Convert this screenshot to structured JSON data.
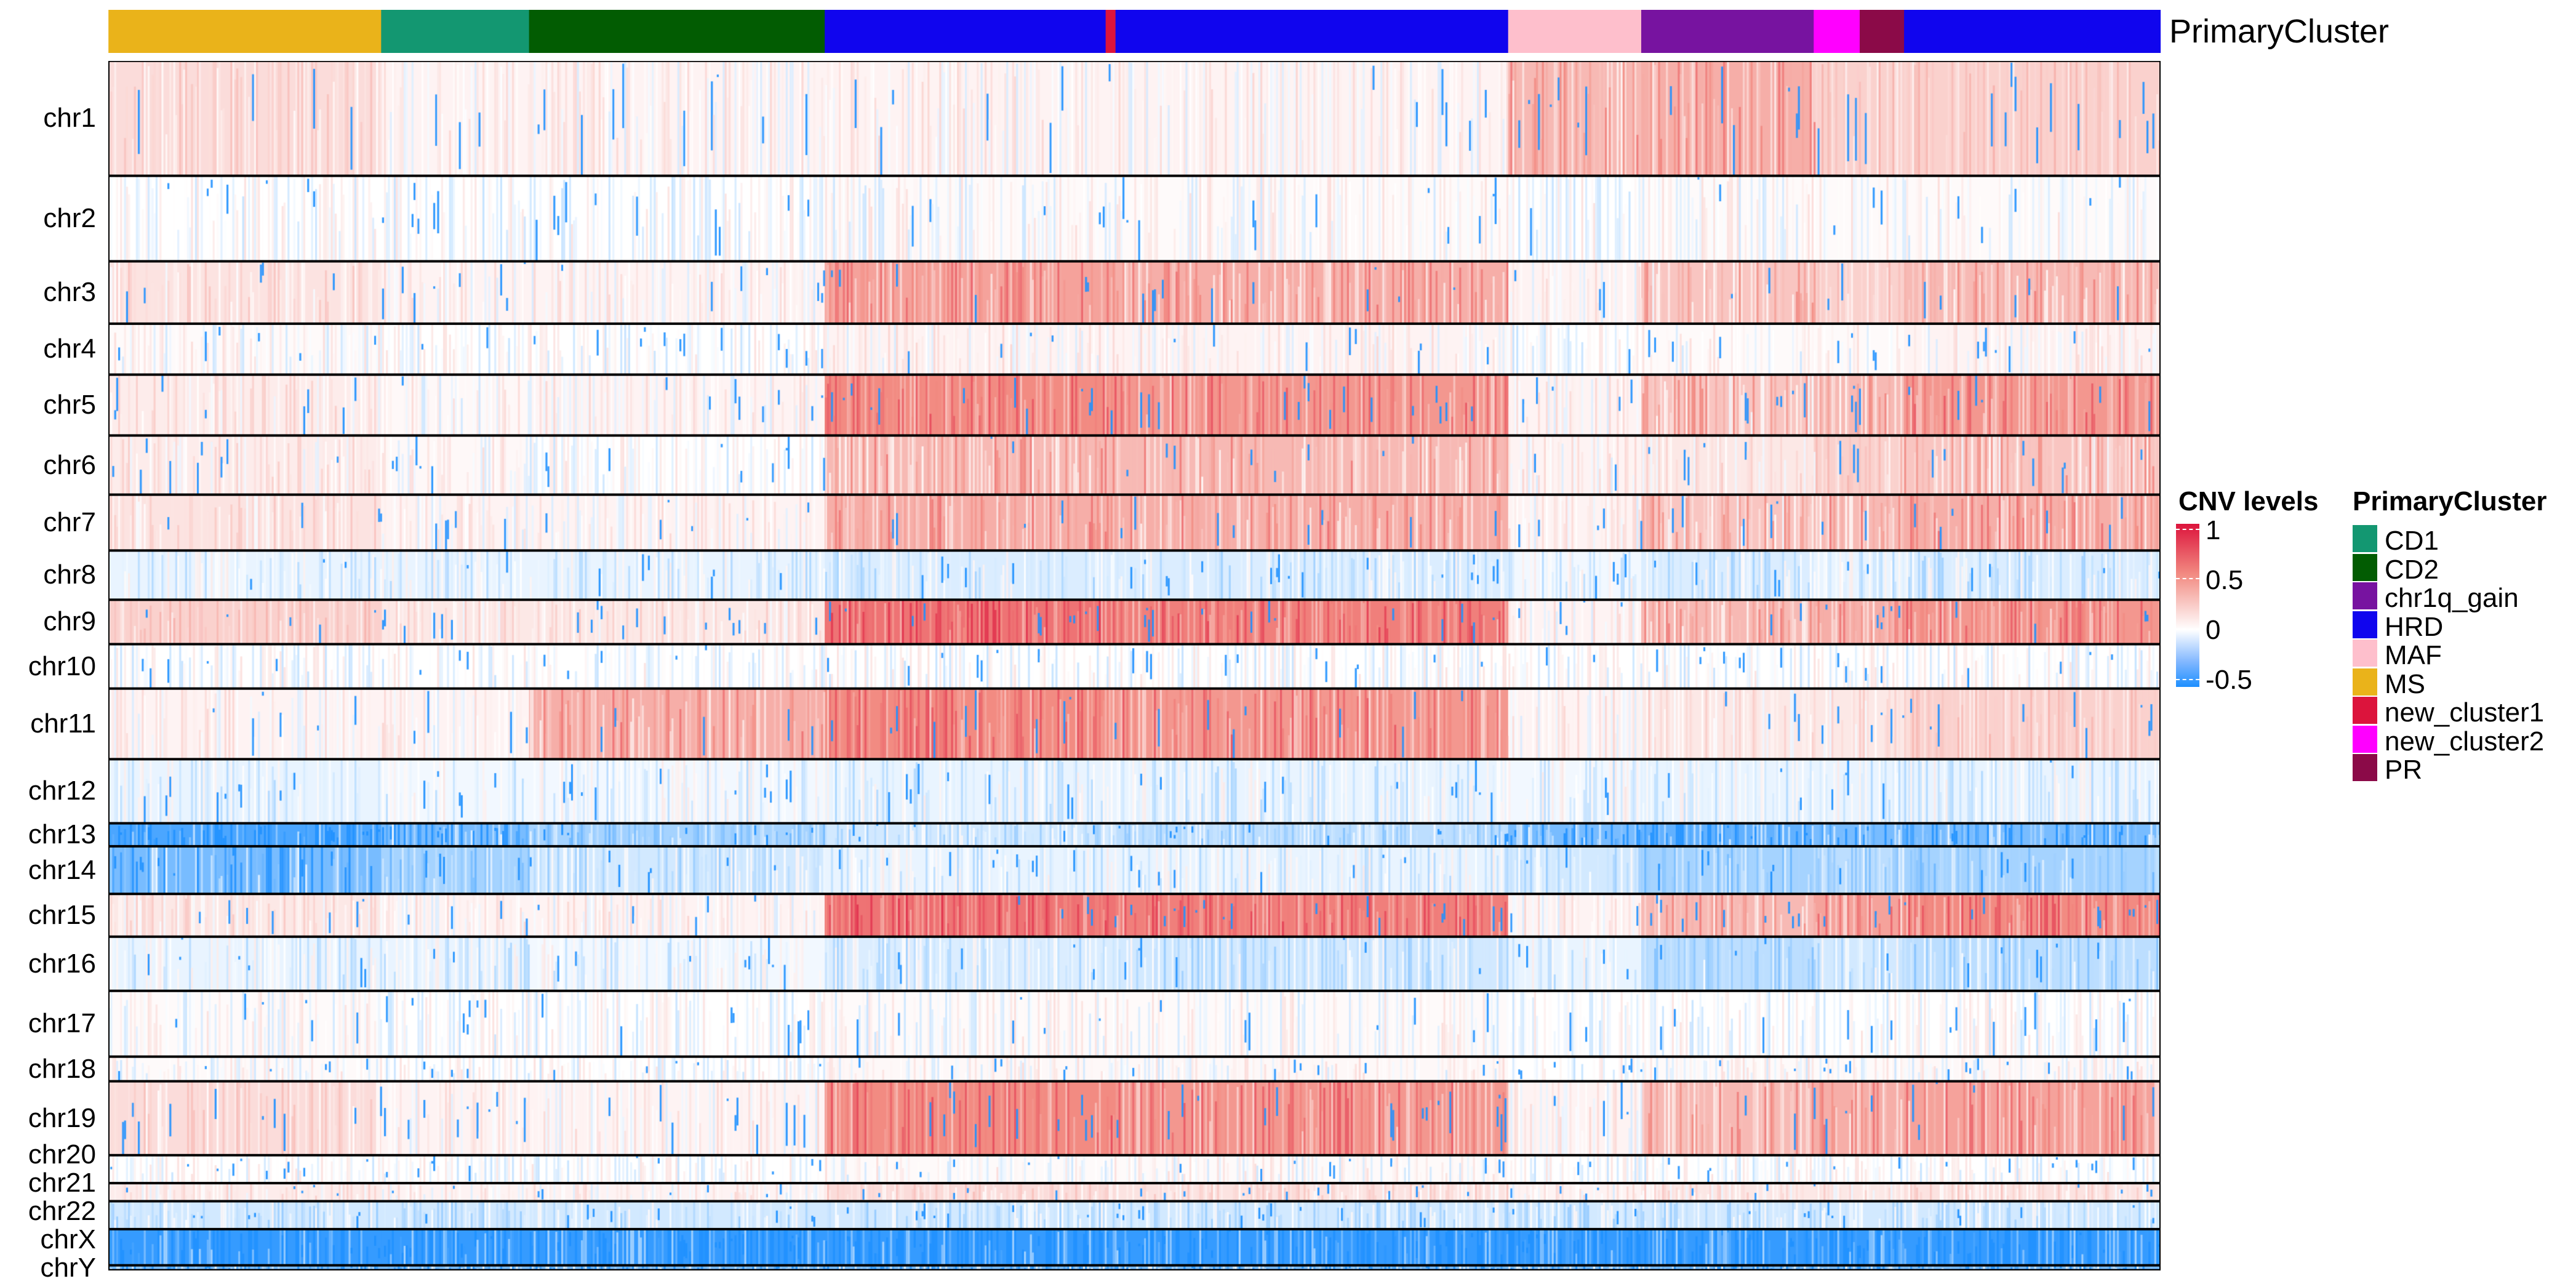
{
  "chart_data": {
    "type": "heatmap",
    "title": "",
    "annotation_title": "PrimaryCluster",
    "rows": [
      "chr1",
      "chr2",
      "chr3",
      "chr4",
      "chr5",
      "chr6",
      "chr7",
      "chr8",
      "chr9",
      "chr10",
      "chr11",
      "chr12",
      "chr13",
      "chr14",
      "chr15",
      "chr16",
      "chr17",
      "chr18",
      "chr19",
      "chr20",
      "chr21",
      "chr22",
      "chrX",
      "chrY"
    ],
    "column_groups": [
      "MS",
      "CD1",
      "CD2",
      "HRD",
      "new_cluster1",
      "HRD",
      "MAF",
      "chr1q_gain",
      "new_cluster2",
      "PR",
      "HRD"
    ],
    "values": [
      [
        0.15,
        0.05,
        0.05,
        0.05,
        0.05,
        0.05,
        0.3,
        0.35,
        0.2,
        0.2,
        0.2
      ],
      [
        0.0,
        0.0,
        0.0,
        0.02,
        0.02,
        0.02,
        0.0,
        0.02,
        0.02,
        0.02,
        0.02
      ],
      [
        0.12,
        0.05,
        0.05,
        0.4,
        0.4,
        0.35,
        0.05,
        0.25,
        0.2,
        0.2,
        0.3
      ],
      [
        0.02,
        0.0,
        0.0,
        0.05,
        0.05,
        0.05,
        0.0,
        0.02,
        0.02,
        0.02,
        0.05
      ],
      [
        0.08,
        0.03,
        0.05,
        0.5,
        0.5,
        0.45,
        0.05,
        0.25,
        0.3,
        0.3,
        0.45
      ],
      [
        0.08,
        0.03,
        0.0,
        0.3,
        0.3,
        0.3,
        0.05,
        0.1,
        0.2,
        0.2,
        0.25
      ],
      [
        0.12,
        0.05,
        0.05,
        0.35,
        0.35,
        0.35,
        0.05,
        0.25,
        0.3,
        0.3,
        0.35
      ],
      [
        -0.05,
        -0.05,
        -0.05,
        -0.08,
        -0.08,
        -0.08,
        -0.03,
        -0.08,
        -0.05,
        -0.05,
        -0.08
      ],
      [
        0.2,
        0.1,
        0.1,
        0.6,
        0.6,
        0.55,
        0.05,
        0.3,
        0.35,
        0.35,
        0.45
      ],
      [
        0.0,
        0.0,
        0.0,
        0.0,
        0.0,
        0.0,
        0.0,
        0.0,
        0.0,
        0.0,
        0.0
      ],
      [
        0.05,
        0.05,
        0.35,
        0.5,
        0.5,
        0.45,
        0.05,
        0.1,
        0.1,
        0.1,
        0.2
      ],
      [
        -0.05,
        -0.03,
        -0.03,
        -0.05,
        -0.05,
        -0.05,
        -0.03,
        -0.05,
        -0.05,
        -0.05,
        -0.05
      ],
      [
        -0.4,
        -0.3,
        -0.2,
        -0.1,
        -0.1,
        -0.15,
        -0.3,
        -0.35,
        -0.3,
        -0.3,
        -0.3
      ],
      [
        -0.3,
        -0.2,
        -0.1,
        -0.05,
        -0.05,
        -0.05,
        -0.1,
        -0.2,
        -0.15,
        -0.15,
        -0.2
      ],
      [
        0.1,
        0.05,
        0.05,
        0.6,
        0.6,
        0.55,
        0.05,
        0.3,
        0.4,
        0.4,
        0.5
      ],
      [
        -0.05,
        -0.05,
        -0.03,
        -0.08,
        -0.08,
        -0.1,
        -0.05,
        -0.15,
        -0.1,
        -0.1,
        -0.15
      ],
      [
        0.02,
        0.0,
        0.0,
        0.02,
        0.02,
        0.02,
        0.0,
        0.0,
        0.0,
        0.0,
        0.0
      ],
      [
        0.02,
        0.0,
        0.0,
        0.03,
        0.03,
        0.03,
        0.0,
        0.02,
        0.02,
        0.02,
        0.03
      ],
      [
        0.15,
        0.05,
        0.05,
        0.5,
        0.5,
        0.45,
        0.05,
        0.3,
        0.35,
        0.35,
        0.4
      ],
      [
        0.0,
        0.0,
        0.0,
        0.02,
        0.02,
        0.02,
        0.0,
        0.0,
        0.0,
        0.0,
        0.0
      ],
      [
        0.08,
        0.05,
        0.05,
        0.15,
        0.15,
        0.12,
        0.05,
        0.1,
        0.1,
        0.1,
        0.12
      ],
      [
        -0.1,
        -0.1,
        -0.1,
        -0.1,
        -0.1,
        -0.1,
        -0.1,
        -0.1,
        -0.1,
        -0.1,
        -0.1
      ],
      [
        -0.45,
        -0.45,
        -0.45,
        -0.45,
        -0.45,
        -0.45,
        -0.45,
        -0.45,
        -0.45,
        -0.45,
        -0.45
      ],
      [
        -0.3,
        -0.3,
        -0.3,
        -0.3,
        -0.3,
        -0.3,
        -0.3,
        -0.3,
        -0.3,
        -0.3,
        -0.3
      ]
    ],
    "color_scale": {
      "title": "CNV levels",
      "ticks": [
        "1",
        "0.5",
        "0",
        "-0.5"
      ],
      "tick_values": [
        1,
        0.5,
        0,
        -0.5
      ],
      "range": [
        -0.5,
        1
      ],
      "low": "#1E90FF",
      "mid": "#FFFFFF",
      "mid_high": "#F28B82",
      "high": "#DC143C"
    },
    "legend": {
      "title": "PrimaryCluster",
      "items": [
        {
          "label": "CD1",
          "color": "#139771"
        },
        {
          "label": "CD2",
          "color": "#025C02"
        },
        {
          "label": "chr1q_gain",
          "color": "#7713A0"
        },
        {
          "label": "HRD",
          "color": "#1005EE"
        },
        {
          "label": "MAF",
          "color": "#FEBFCC"
        },
        {
          "label": "MS",
          "color": "#EAB31A"
        },
        {
          "label": "new_cluster1",
          "color": "#DC143C"
        },
        {
          "label": "new_cluster2",
          "color": "#FF00FF"
        },
        {
          "label": "PR",
          "color": "#8B0A48"
        }
      ]
    }
  }
}
